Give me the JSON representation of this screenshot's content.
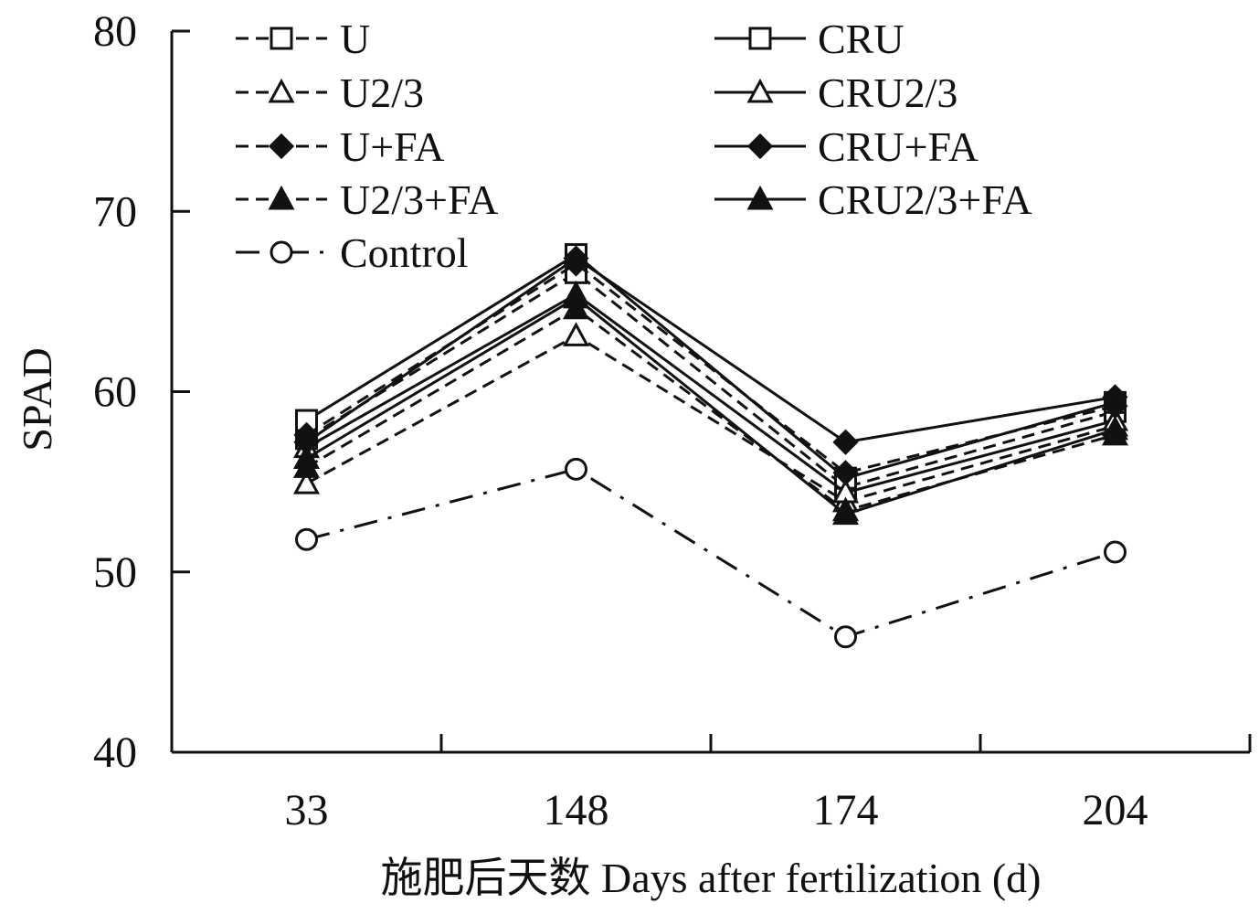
{
  "chart_data": {
    "type": "line",
    "categories": [
      "33",
      "148",
      "174",
      "204"
    ],
    "xlabel": "施肥后天数 Days after fertilization (d)",
    "ylabel": "SPAD",
    "ylim": [
      40,
      80
    ],
    "yticks": [
      40,
      50,
      60,
      70,
      80
    ],
    "grid": false,
    "legend_position": "top",
    "series": [
      {
        "name": "U",
        "line": "dashed",
        "marker": "square-open",
        "values": [
          57.4,
          66.6,
          54.7,
          58.9
        ]
      },
      {
        "name": "CRU",
        "line": "solid",
        "marker": "square-open",
        "values": [
          58.4,
          67.6,
          55.2,
          59.4
        ]
      },
      {
        "name": "U2/3",
        "line": "dashed",
        "marker": "triangle-open",
        "values": [
          54.9,
          63.1,
          53.9,
          58.1
        ]
      },
      {
        "name": "CRU2/3",
        "line": "solid",
        "marker": "triangle-open",
        "values": [
          56.9,
          65.4,
          54.4,
          58.4
        ]
      },
      {
        "name": "U+FA",
        "line": "dashed",
        "marker": "diamond-filled",
        "values": [
          57.6,
          67.1,
          55.5,
          59.2
        ]
      },
      {
        "name": "CRU+FA",
        "line": "solid",
        "marker": "diamond-filled",
        "values": [
          57.2,
          67.4,
          57.2,
          59.7
        ]
      },
      {
        "name": "U2/3+FA",
        "line": "dashed",
        "marker": "triangle-filled",
        "values": [
          55.8,
          64.6,
          53.4,
          57.6
        ]
      },
      {
        "name": "CRU2/3+FA",
        "line": "solid",
        "marker": "triangle-filled",
        "values": [
          56.3,
          65.2,
          53.2,
          57.9
        ]
      },
      {
        "name": "Control",
        "line": "dashdot",
        "marker": "circle-open",
        "values": [
          51.8,
          55.7,
          46.4,
          51.1
        ]
      }
    ]
  }
}
